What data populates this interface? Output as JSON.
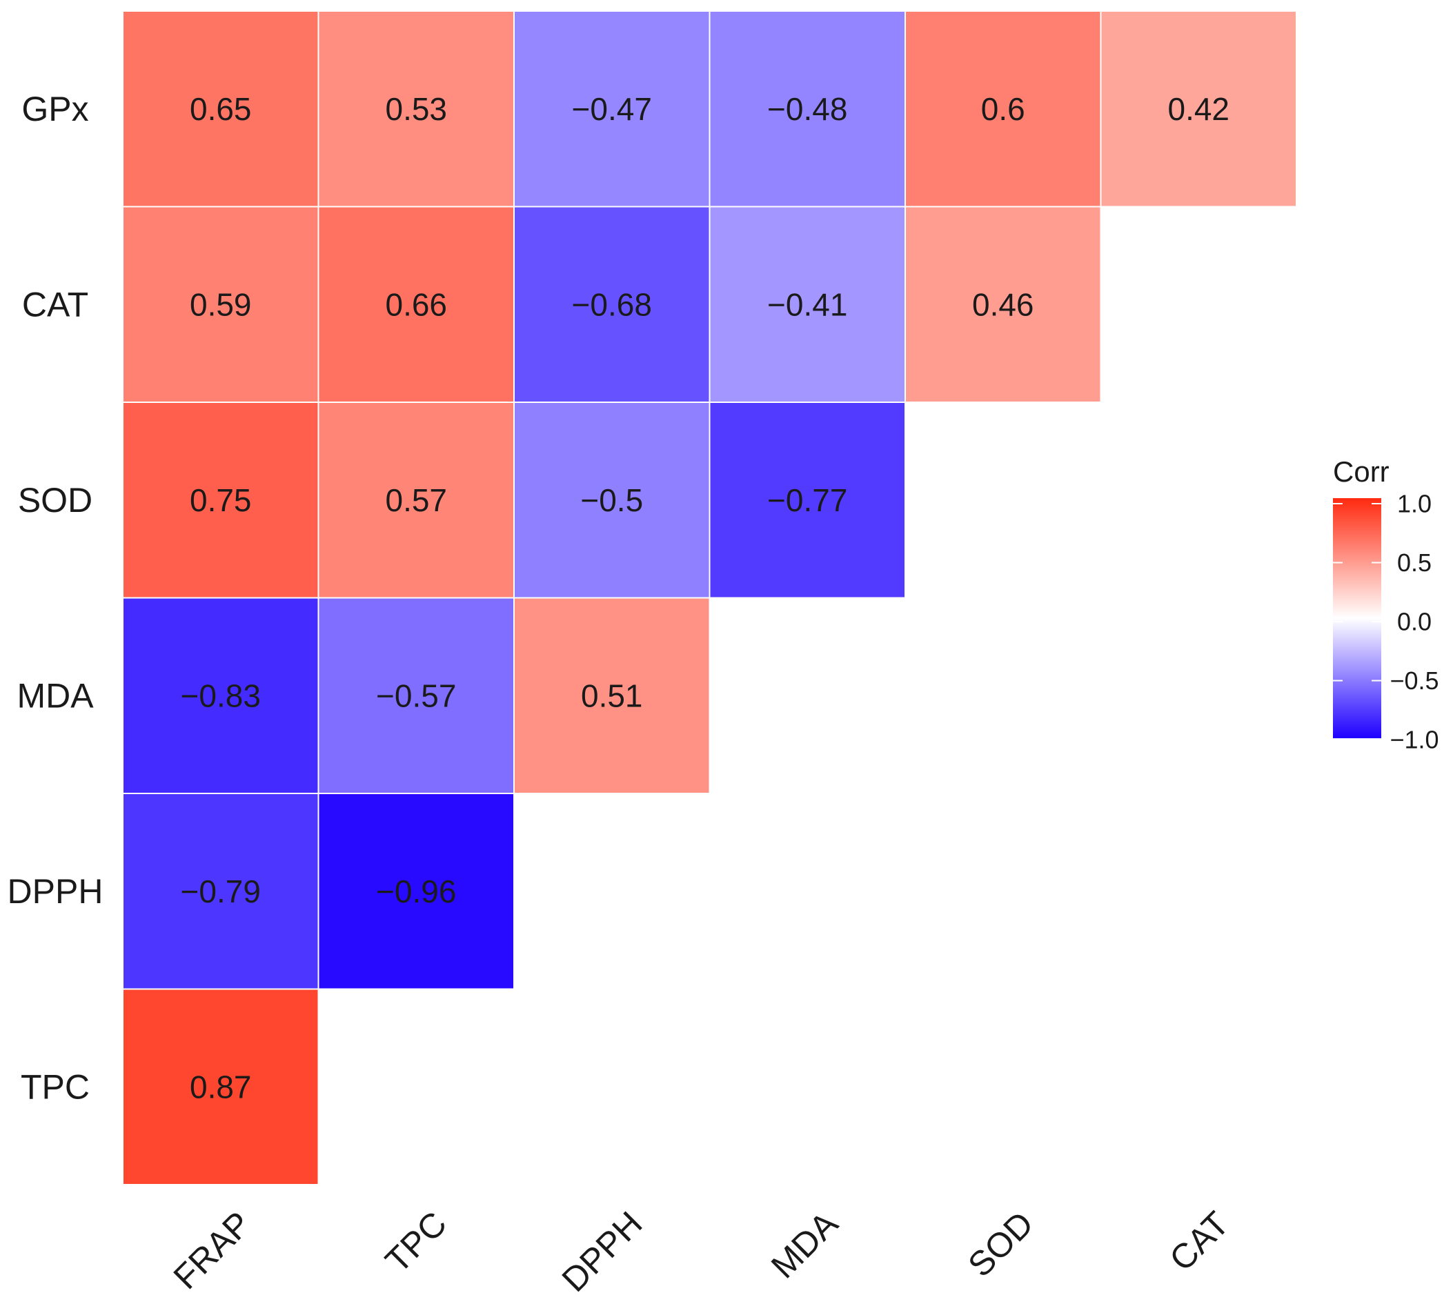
{
  "chart_data": {
    "type": "heatmap",
    "title": "",
    "rows": [
      "GPx",
      "CAT",
      "SOD",
      "MDA",
      "DPPH",
      "TPC"
    ],
    "columns": [
      "FRAP",
      "TPC",
      "DPPH",
      "MDA",
      "SOD",
      "CAT"
    ],
    "cells": [
      {
        "row": "GPx",
        "col": "FRAP",
        "value": 0.65,
        "label": "0.65"
      },
      {
        "row": "GPx",
        "col": "TPC",
        "value": 0.53,
        "label": "0.53"
      },
      {
        "row": "GPx",
        "col": "DPPH",
        "value": -0.47,
        "label": "−0.47"
      },
      {
        "row": "GPx",
        "col": "MDA",
        "value": -0.48,
        "label": "−0.48"
      },
      {
        "row": "GPx",
        "col": "SOD",
        "value": 0.6,
        "label": "0.6"
      },
      {
        "row": "GPx",
        "col": "CAT",
        "value": 0.42,
        "label": "0.42"
      },
      {
        "row": "CAT",
        "col": "FRAP",
        "value": 0.59,
        "label": "0.59"
      },
      {
        "row": "CAT",
        "col": "TPC",
        "value": 0.66,
        "label": "0.66"
      },
      {
        "row": "CAT",
        "col": "DPPH",
        "value": -0.68,
        "label": "−0.68"
      },
      {
        "row": "CAT",
        "col": "MDA",
        "value": -0.41,
        "label": "−0.41"
      },
      {
        "row": "CAT",
        "col": "SOD",
        "value": 0.46,
        "label": "0.46"
      },
      {
        "row": "SOD",
        "col": "FRAP",
        "value": 0.75,
        "label": "0.75"
      },
      {
        "row": "SOD",
        "col": "TPC",
        "value": 0.57,
        "label": "0.57"
      },
      {
        "row": "SOD",
        "col": "DPPH",
        "value": -0.5,
        "label": "−0.5"
      },
      {
        "row": "SOD",
        "col": "MDA",
        "value": -0.77,
        "label": "−0.77"
      },
      {
        "row": "MDA",
        "col": "FRAP",
        "value": -0.83,
        "label": "−0.83"
      },
      {
        "row": "MDA",
        "col": "TPC",
        "value": -0.57,
        "label": "−0.57"
      },
      {
        "row": "MDA",
        "col": "DPPH",
        "value": 0.51,
        "label": "0.51"
      },
      {
        "row": "DPPH",
        "col": "FRAP",
        "value": -0.79,
        "label": "−0.79"
      },
      {
        "row": "DPPH",
        "col": "TPC",
        "value": -0.96,
        "label": "−0.96"
      },
      {
        "row": "TPC",
        "col": "FRAP",
        "value": 0.87,
        "label": "0.87"
      }
    ],
    "legend": {
      "title": "Corr",
      "placement": "right",
      "range": [
        -1.0,
        1.0
      ],
      "ticks": [
        {
          "value": 1.0,
          "label": "1.0"
        },
        {
          "value": 0.5,
          "label": "0.5"
        },
        {
          "value": 0.0,
          "label": "0.0"
        },
        {
          "value": -0.5,
          "label": "−0.5"
        },
        {
          "value": -1.0,
          "label": "−1.0"
        }
      ]
    },
    "colors": {
      "high": "#ff2a10",
      "mid": "#ffffff",
      "low": "#1e00ff"
    }
  }
}
